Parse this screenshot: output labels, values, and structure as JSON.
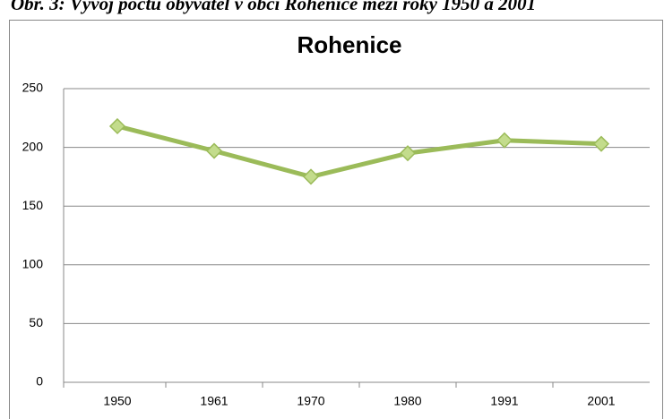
{
  "caption": "Obr. 3: Vývoj počtu obyvatel v obci Rohenice mezi roky 1950 a 2001",
  "chart_data": {
    "type": "line",
    "title": "Rohenice",
    "categories": [
      "1950",
      "1961",
      "1970",
      "1980",
      "1991",
      "2001"
    ],
    "series": [
      {
        "name": "Rohenice",
        "color": "#9bbb59",
        "values": [
          218,
          197,
          175,
          195,
          206,
          203
        ]
      }
    ],
    "ylim": [
      0,
      250
    ],
    "yticks": [
      0,
      50,
      100,
      150,
      200,
      250
    ],
    "grid": true,
    "legend": false
  }
}
